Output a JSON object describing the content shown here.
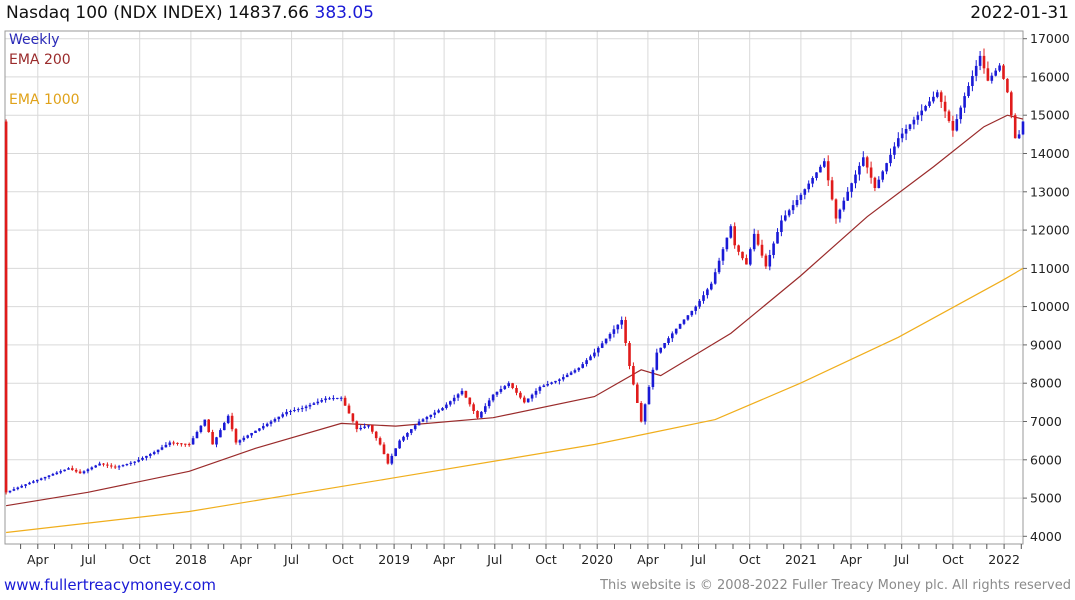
{
  "header": {
    "name": "Nasdaq 100 (NDX INDEX)",
    "last": "14837.66",
    "change": "383.05",
    "date": "2022-01-31"
  },
  "legend": {
    "weekly": "Weekly",
    "ema200": "EMA 200",
    "ema1000": "EMA 1000"
  },
  "footer": {
    "site": "www.fullertreacymoney.com",
    "copyright": "This website is © 2008-2022 Fuller Treacy Money plc. All rights reserved"
  },
  "colors": {
    "up": "#1a1ad6",
    "down": "#e01b1b",
    "ema200": "#9a2b2b",
    "ema1000": "#f0ae1c",
    "grid": "#d9d9d9"
  },
  "chart_data": {
    "type": "line",
    "ylim": [
      3800,
      17200
    ],
    "x_range": [
      "2017-02-01",
      "2022-02-04"
    ],
    "y_ticks": [
      4000,
      5000,
      6000,
      7000,
      8000,
      9000,
      10000,
      11000,
      12000,
      13000,
      14000,
      15000,
      16000,
      17000
    ],
    "x_ticks": [
      {
        "date": "2017-04-01",
        "label": "Apr"
      },
      {
        "date": "2017-07-01",
        "label": "Jul"
      },
      {
        "date": "2017-10-01",
        "label": "Oct"
      },
      {
        "date": "2018-01-01",
        "label": "2018"
      },
      {
        "date": "2018-04-01",
        "label": "Apr"
      },
      {
        "date": "2018-07-01",
        "label": "Jul"
      },
      {
        "date": "2018-10-01",
        "label": "Oct"
      },
      {
        "date": "2019-01-01",
        "label": "2019"
      },
      {
        "date": "2019-04-01",
        "label": "Apr"
      },
      {
        "date": "2019-07-01",
        "label": "Jul"
      },
      {
        "date": "2019-10-01",
        "label": "Oct"
      },
      {
        "date": "2020-01-01",
        "label": "2020"
      },
      {
        "date": "2020-04-01",
        "label": "Apr"
      },
      {
        "date": "2020-07-01",
        "label": "Jul"
      },
      {
        "date": "2020-10-01",
        "label": "Oct"
      },
      {
        "date": "2021-01-01",
        "label": "2021"
      },
      {
        "date": "2021-04-01",
        "label": "Apr"
      },
      {
        "date": "2021-07-01",
        "label": "Jul"
      },
      {
        "date": "2021-10-01",
        "label": "Oct"
      },
      {
        "date": "2022-01-01",
        "label": "2022"
      }
    ],
    "grid": true,
    "price_path": [
      [
        "2017-02-03",
        5150
      ],
      [
        "2017-03-17",
        5400
      ],
      [
        "2017-05-26",
        5780
      ],
      [
        "2017-06-16",
        5650
      ],
      [
        "2017-07-21",
        5900
      ],
      [
        "2017-08-18",
        5800
      ],
      [
        "2017-09-22",
        5950
      ],
      [
        "2017-10-27",
        6200
      ],
      [
        "2017-11-24",
        6450
      ],
      [
        "2017-12-29",
        6400
      ],
      [
        "2018-01-26",
        7050
      ],
      [
        "2018-02-09",
        6400
      ],
      [
        "2018-03-09",
        7150
      ],
      [
        "2018-03-23",
        6450
      ],
      [
        "2018-04-20",
        6700
      ],
      [
        "2018-05-25",
        7000
      ],
      [
        "2018-06-22",
        7250
      ],
      [
        "2018-07-20",
        7350
      ],
      [
        "2018-08-31",
        7600
      ],
      [
        "2018-09-28",
        7620
      ],
      [
        "2018-10-26",
        6800
      ],
      [
        "2018-11-16",
        6900
      ],
      [
        "2018-12-07",
        6400
      ],
      [
        "2018-12-21",
        5900
      ],
      [
        "2019-01-11",
        6500
      ],
      [
        "2019-02-15",
        7000
      ],
      [
        "2019-03-29",
        7350
      ],
      [
        "2019-05-03",
        7800
      ],
      [
        "2019-05-31",
        7100
      ],
      [
        "2019-06-28",
        7700
      ],
      [
        "2019-07-26",
        8000
      ],
      [
        "2019-08-23",
        7500
      ],
      [
        "2019-09-20",
        7900
      ],
      [
        "2019-10-25",
        8100
      ],
      [
        "2019-11-29",
        8400
      ],
      [
        "2019-12-27",
        8800
      ],
      [
        "2020-02-14",
        9650
      ],
      [
        "2020-02-28",
        8450
      ],
      [
        "2020-03-20",
        7000
      ],
      [
        "2020-04-17",
        8800
      ],
      [
        "2020-05-29",
        9550
      ],
      [
        "2020-06-26",
        10000
      ],
      [
        "2020-07-24",
        10600
      ],
      [
        "2020-08-28",
        12100
      ],
      [
        "2020-09-04",
        11600
      ],
      [
        "2020-09-25",
        11100
      ],
      [
        "2020-10-09",
        11900
      ],
      [
        "2020-10-30",
        11050
      ],
      [
        "2020-11-27",
        12250
      ],
      [
        "2020-12-31",
        12900
      ],
      [
        "2021-02-12",
        13800
      ],
      [
        "2021-03-05",
        12300
      ],
      [
        "2021-03-26",
        13000
      ],
      [
        "2021-04-23",
        13900
      ],
      [
        "2021-05-14",
        13100
      ],
      [
        "2021-06-25",
        14400
      ],
      [
        "2021-07-30",
        15000
      ],
      [
        "2021-09-03",
        15600
      ],
      [
        "2021-10-01",
        14600
      ],
      [
        "2021-10-22",
        15500
      ],
      [
        "2021-11-19",
        16550
      ],
      [
        "2021-12-03",
        15900
      ],
      [
        "2021-12-24",
        16300
      ],
      [
        "2022-01-07",
        15600
      ],
      [
        "2022-01-21",
        14400
      ],
      [
        "2022-01-28",
        14500
      ],
      [
        "2022-02-04",
        14837
      ]
    ],
    "series": [
      {
        "name": "EMA 200",
        "points": [
          [
            "2017-02-03",
            4800
          ],
          [
            "2017-06-30",
            5150
          ],
          [
            "2017-12-29",
            5700
          ],
          [
            "2018-04-27",
            6300
          ],
          [
            "2018-09-28",
            6950
          ],
          [
            "2019-01-04",
            6880
          ],
          [
            "2019-06-28",
            7100
          ],
          [
            "2019-12-27",
            7650
          ],
          [
            "2020-03-20",
            8350
          ],
          [
            "2020-04-24",
            8200
          ],
          [
            "2020-08-28",
            9300
          ],
          [
            "2020-12-31",
            10800
          ],
          [
            "2021-04-30",
            12350
          ],
          [
            "2021-08-27",
            13650
          ],
          [
            "2021-11-26",
            14700
          ],
          [
            "2022-01-07",
            15000
          ],
          [
            "2022-02-04",
            14900
          ]
        ]
      },
      {
        "name": "EMA 1000",
        "points": [
          [
            "2017-02-03",
            4100
          ],
          [
            "2017-12-29",
            4650
          ],
          [
            "2018-12-28",
            5520
          ],
          [
            "2019-12-27",
            6400
          ],
          [
            "2020-03-20",
            6650
          ],
          [
            "2020-07-31",
            7050
          ],
          [
            "2020-12-31",
            8000
          ],
          [
            "2021-06-25",
            9200
          ],
          [
            "2021-12-31",
            10700
          ],
          [
            "2022-02-04",
            11000
          ]
        ]
      }
    ]
  }
}
